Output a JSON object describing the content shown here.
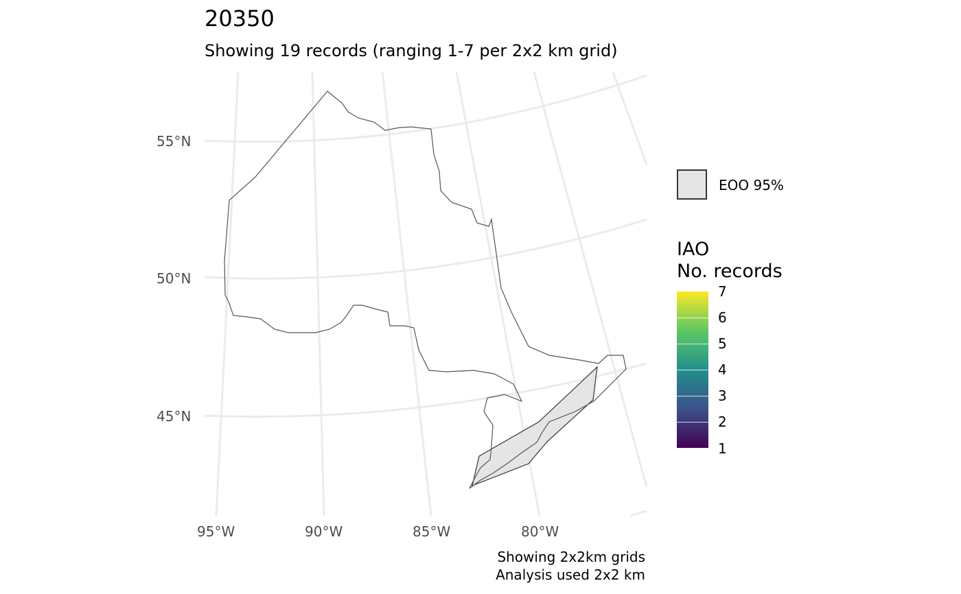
{
  "title": "20350",
  "subtitle": "Showing 19 records (ranging 1-7 per 2x2 km grid)",
  "caption": {
    "line1": "Showing 2x2km grids",
    "line2": "Analysis used 2x2 km"
  },
  "axes": {
    "latitude_labels": [
      "55°N",
      "50°N",
      "45°N"
    ],
    "longitude_labels": [
      "95°W",
      "90°W",
      "85°W",
      "80°W"
    ]
  },
  "legend": {
    "eoo_label": "EOO 95%",
    "iao_title_line1": "IAO",
    "iao_title_line2": "No. records",
    "iao_ticks": [
      "7",
      "6",
      "5",
      "4",
      "3",
      "2",
      "1"
    ],
    "colors": {
      "eoo_fill": "#e5e5e5",
      "scale_low": "#440154",
      "scale_high": "#fde725"
    }
  }
}
